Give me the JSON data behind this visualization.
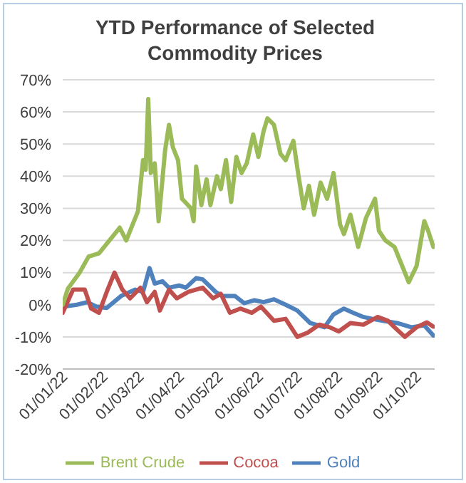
{
  "chart_data": {
    "type": "line",
    "title": "YTD Performance of Selected Commodity Prices",
    "xlim": [
      "2022-01-01",
      "2022-10-15"
    ],
    "xticks": [
      {
        "value": "2022-01-01",
        "label": "01/01/22"
      },
      {
        "value": "2022-02-01",
        "label": "01/02/22"
      },
      {
        "value": "2022-03-01",
        "label": "01/03/22"
      },
      {
        "value": "2022-04-01",
        "label": "01/04/22"
      },
      {
        "value": "2022-05-01",
        "label": "01/05/22"
      },
      {
        "value": "2022-06-01",
        "label": "01/06/22"
      },
      {
        "value": "2022-07-01",
        "label": "01/07/22"
      },
      {
        "value": "2022-08-01",
        "label": "01/08/22"
      },
      {
        "value": "2022-09-01",
        "label": "01/09/22"
      },
      {
        "value": "2022-10-01",
        "label": "01/10/22"
      }
    ],
    "ylim": [
      -20,
      70
    ],
    "yticks": [
      {
        "value": -20,
        "label": "-20%"
      },
      {
        "value": -10,
        "label": "-10%"
      },
      {
        "value": 0,
        "label": "0%"
      },
      {
        "value": 10,
        "label": "10%"
      },
      {
        "value": 20,
        "label": "20%"
      },
      {
        "value": 30,
        "label": "30%"
      },
      {
        "value": 40,
        "label": "40%"
      },
      {
        "value": 50,
        "label": "50%"
      },
      {
        "value": 60,
        "label": "60%"
      },
      {
        "value": 70,
        "label": "70%"
      }
    ],
    "grid": "y",
    "legend": "bottom",
    "marker": "none",
    "line_style": "solid",
    "series": [
      {
        "name": "Gold",
        "color": "#4f81bd",
        "x": [
          "2022-01-01",
          "2022-01-12",
          "2022-01-20",
          "2022-01-27",
          "2022-02-04",
          "2022-02-15",
          "2022-02-26",
          "2022-03-04",
          "2022-03-09",
          "2022-03-13",
          "2022-03-19",
          "2022-03-24",
          "2022-04-01",
          "2022-04-06",
          "2022-04-14",
          "2022-04-19",
          "2022-04-29",
          "2022-05-04",
          "2022-05-14",
          "2022-05-21",
          "2022-05-29",
          "2022-06-05",
          "2022-06-13",
          "2022-06-22",
          "2022-07-01",
          "2022-07-11",
          "2022-07-22",
          "2022-07-29",
          "2022-08-06",
          "2022-08-13",
          "2022-08-21",
          "2022-08-28",
          "2022-09-05",
          "2022-09-16",
          "2022-09-27",
          "2022-10-07",
          "2022-10-14"
        ],
        "values": [
          -0.6,
          0,
          0.8,
          -0.6,
          -1,
          2.7,
          4.7,
          4,
          11.4,
          6.6,
          7.3,
          5.3,
          6,
          5.3,
          8.3,
          7.9,
          4,
          2.7,
          2.7,
          0.5,
          1.4,
          0.8,
          1.7,
          0,
          -1.8,
          -5.7,
          -7,
          -3,
          -1.2,
          -2.5,
          -3.8,
          -4.4,
          -5,
          -5.7,
          -7,
          -6.4,
          -9.6
        ]
      },
      {
        "name": "Cocoa",
        "color": "#c0504d",
        "x": [
          "2022-01-01",
          "2022-01-09",
          "2022-01-18",
          "2022-01-23",
          "2022-01-29",
          "2022-02-04",
          "2022-02-10",
          "2022-02-16",
          "2022-02-22",
          "2022-03-02",
          "2022-03-07",
          "2022-03-13",
          "2022-03-17",
          "2022-03-24",
          "2022-03-30",
          "2022-04-08",
          "2022-04-19",
          "2022-04-27",
          "2022-05-03",
          "2022-05-10",
          "2022-05-18",
          "2022-05-27",
          "2022-06-03",
          "2022-06-13",
          "2022-06-22",
          "2022-07-01",
          "2022-07-09",
          "2022-07-18",
          "2022-07-26",
          "2022-08-02",
          "2022-08-11",
          "2022-08-21",
          "2022-09-01",
          "2022-09-09",
          "2022-09-14",
          "2022-09-22",
          "2022-10-01",
          "2022-10-09",
          "2022-10-14"
        ],
        "values": [
          -2.5,
          4.7,
          4.7,
          -1.2,
          -2.5,
          4,
          10,
          4.7,
          2,
          5.3,
          0.8,
          4,
          -1.8,
          4.7,
          2,
          4,
          5.3,
          2,
          3.4,
          -2.5,
          -1.2,
          -2.5,
          -0.6,
          -5,
          -4.4,
          -10,
          -8.7,
          -6.2,
          -7,
          -8.3,
          -5.7,
          -6.2,
          -3.8,
          -5,
          -7,
          -10,
          -7,
          -5.5,
          -6.8
        ]
      },
      {
        "name": "Brent Crude",
        "color": "#9bbb59",
        "x": [
          "2022-01-01",
          "2022-01-05",
          "2022-01-14",
          "2022-01-21",
          "2022-01-29",
          "2022-02-04",
          "2022-02-14",
          "2022-02-19",
          "2022-02-28",
          "2022-03-04",
          "2022-03-06",
          "2022-03-08",
          "2022-03-10",
          "2022-03-13",
          "2022-03-16",
          "2022-03-21",
          "2022-03-24",
          "2022-03-27",
          "2022-03-31",
          "2022-04-03",
          "2022-04-10",
          "2022-04-12",
          "2022-04-14",
          "2022-04-18",
          "2022-04-22",
          "2022-04-25",
          "2022-04-30",
          "2022-05-03",
          "2022-05-07",
          "2022-05-11",
          "2022-05-15",
          "2022-05-19",
          "2022-05-23",
          "2022-05-28",
          "2022-06-01",
          "2022-06-05",
          "2022-06-08",
          "2022-06-13",
          "2022-06-18",
          "2022-06-22",
          "2022-06-28",
          "2022-07-02",
          "2022-07-06",
          "2022-07-10",
          "2022-07-14",
          "2022-07-19",
          "2022-07-24",
          "2022-07-29",
          "2022-08-03",
          "2022-08-06",
          "2022-08-11",
          "2022-08-17",
          "2022-08-23",
          "2022-08-30",
          "2022-09-02",
          "2022-09-07",
          "2022-09-14",
          "2022-09-20",
          "2022-09-25",
          "2022-10-01",
          "2022-10-07",
          "2022-10-10",
          "2022-10-14"
        ],
        "values": [
          0,
          5,
          10,
          15,
          16,
          19,
          24,
          20,
          29,
          45,
          42,
          64,
          41,
          44,
          26,
          48,
          56,
          49,
          45,
          33,
          30,
          26,
          43,
          31,
          39,
          31,
          40,
          36,
          45,
          32,
          46,
          41,
          44,
          53,
          46,
          54,
          58,
          56,
          47,
          45,
          51,
          40,
          30,
          37,
          28,
          38,
          33,
          41,
          25,
          22,
          28,
          18,
          27,
          33,
          23,
          20,
          18,
          12,
          7,
          12,
          26,
          23,
          18
        ]
      }
    ]
  }
}
